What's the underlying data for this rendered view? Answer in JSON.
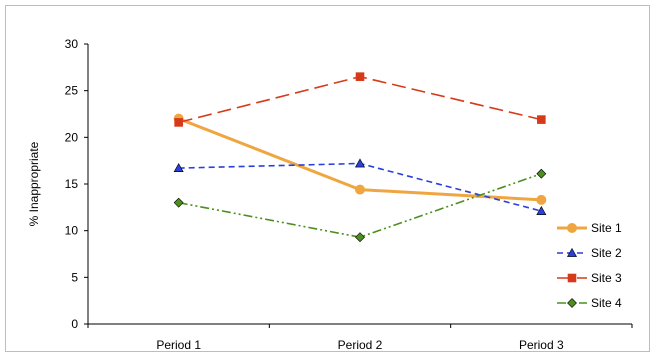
{
  "chart_data": {
    "type": "line",
    "title": "",
    "xlabel": "",
    "ylabel": "% Inappropriate",
    "categories": [
      "Period 1",
      "Period 2",
      "Period 3"
    ],
    "ylim": [
      0,
      30
    ],
    "yticks": [
      0,
      5,
      10,
      15,
      20,
      25,
      30
    ],
    "grid": false,
    "legend_position": "right",
    "series": [
      {
        "name": "Site 1",
        "values": [
          22.0,
          14.4,
          13.3
        ],
        "color": "#f0a640",
        "dash": "solid",
        "marker": "circle"
      },
      {
        "name": "Site 2",
        "values": [
          16.7,
          17.2,
          12.1
        ],
        "color": "#2b3fd9",
        "dash": "dash",
        "marker": "triangle"
      },
      {
        "name": "Site 3",
        "values": [
          21.6,
          26.5,
          21.9
        ],
        "color": "#d63a1a",
        "dash": "longdash",
        "marker": "square"
      },
      {
        "name": "Site 4",
        "values": [
          13.0,
          9.3,
          16.1
        ],
        "color": "#4c8f1f",
        "dash": "dashdotdot",
        "marker": "diamond"
      }
    ]
  }
}
